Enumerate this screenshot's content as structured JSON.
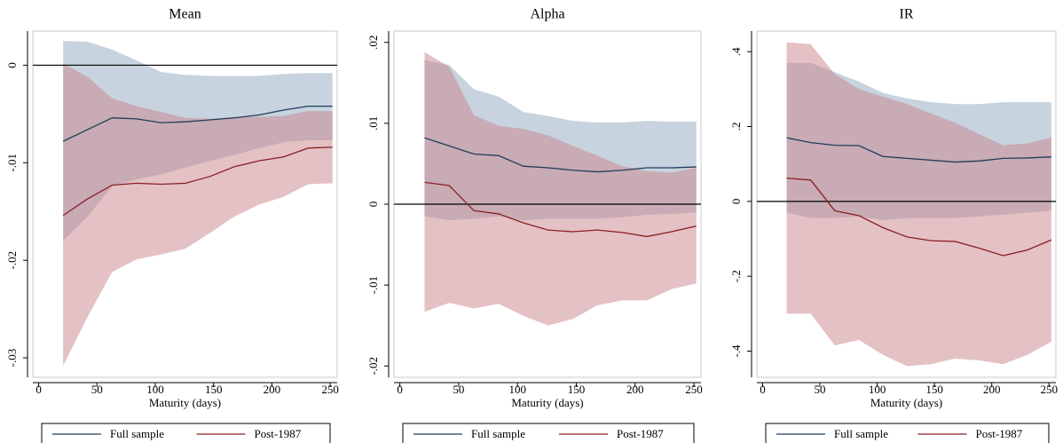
{
  "chart_data": [
    {
      "type": "line",
      "title": "Mean",
      "xlabel": "Maturity (days)",
      "x": [
        21,
        42,
        63,
        84,
        105,
        126,
        147,
        168,
        189,
        210,
        231,
        252
      ],
      "series": [
        {
          "name": "Full sample",
          "color": "#1f3d5c",
          "band_color": "#8fa8be",
          "values": [
            -0.0078,
            -0.0066,
            -0.0054,
            -0.0055,
            -0.0059,
            -0.0058,
            -0.0056,
            -0.0054,
            -0.0051,
            -0.0046,
            -0.0042,
            -0.0042
          ],
          "upper": [
            0.0025,
            0.0024,
            0.0016,
            0.0005,
            -0.0007,
            -0.001,
            -0.0011,
            -0.0011,
            -0.0011,
            -0.0009,
            -0.0008,
            -0.0008
          ],
          "lower": [
            -0.018,
            -0.0155,
            -0.0124,
            -0.0117,
            -0.0112,
            -0.0105,
            -0.0098,
            -0.0092,
            -0.0085,
            -0.0079,
            -0.0077,
            -0.0077
          ]
        },
        {
          "name": "Post-1987",
          "color": "#8b1e24",
          "band_color": "#c9838a",
          "values": [
            -0.0154,
            -0.0137,
            -0.0123,
            -0.0121,
            -0.0122,
            -0.0121,
            -0.0114,
            -0.0104,
            -0.0098,
            -0.0094,
            -0.0085,
            -0.0084
          ],
          "upper": [
            0.0002,
            -0.0012,
            -0.0034,
            -0.0042,
            -0.0048,
            -0.0054,
            -0.0055,
            -0.0053,
            -0.0053,
            -0.0052,
            -0.0047,
            -0.0047
          ],
          "lower": [
            -0.0308,
            -0.0258,
            -0.0212,
            -0.0199,
            -0.0194,
            -0.0188,
            -0.0172,
            -0.0155,
            -0.0143,
            -0.0135,
            -0.0122,
            -0.0121
          ]
        }
      ],
      "xlim": [
        -5,
        256
      ],
      "xticks": [
        0,
        50,
        100,
        150,
        200,
        250
      ],
      "ylim": [
        -0.032,
        0.0035
      ],
      "yticks": [
        {
          "value": -0.03,
          "label": "-.03"
        },
        {
          "value": -0.02,
          "label": "-.02"
        },
        {
          "value": -0.01,
          "label": "-.01"
        },
        0
      ],
      "reference_line": 0,
      "legend": "bottom"
    },
    {
      "type": "line",
      "title": "Alpha",
      "xlabel": "Maturity (days)",
      "x": [
        21,
        42,
        63,
        84,
        105,
        126,
        147,
        168,
        189,
        210,
        231,
        252
      ],
      "series": [
        {
          "name": "Full sample",
          "color": "#1f3d5c",
          "band_color": "#8fa8be",
          "values": [
            0.0082,
            0.0072,
            0.0062,
            0.006,
            0.0047,
            0.0045,
            0.0042,
            0.004,
            0.0042,
            0.0045,
            0.0045,
            0.0046
          ],
          "upper": [
            0.0178,
            0.0172,
            0.0142,
            0.0133,
            0.0114,
            0.0109,
            0.0103,
            0.0101,
            0.0101,
            0.0103,
            0.0102,
            0.0102
          ],
          "lower": [
            -0.0015,
            -0.002,
            -0.0018,
            -0.0015,
            -0.002,
            -0.0018,
            -0.0018,
            -0.0018,
            -0.0016,
            -0.0013,
            -0.0012,
            -0.001
          ]
        },
        {
          "name": "Post-1987",
          "color": "#8b1e24",
          "band_color": "#c9838a",
          "values": [
            0.0027,
            0.0023,
            -0.0008,
            -0.0012,
            -0.0023,
            -0.0032,
            -0.0034,
            -0.0032,
            -0.0035,
            -0.004,
            -0.0034,
            -0.0027
          ],
          "upper": [
            0.0188,
            0.017,
            0.011,
            0.0097,
            0.0093,
            0.0085,
            0.0072,
            0.006,
            0.0047,
            0.0041,
            0.0039,
            0.0045
          ],
          "lower": [
            -0.0133,
            -0.0122,
            -0.0129,
            -0.0123,
            -0.0138,
            -0.015,
            -0.0142,
            -0.0125,
            -0.0119,
            -0.0119,
            -0.0105,
            -0.0098
          ]
        }
      ],
      "xlim": [
        -5,
        256
      ],
      "xticks": [
        0,
        50,
        100,
        150,
        200,
        250
      ],
      "ylim": [
        -0.0214,
        0.0214
      ],
      "yticks": [
        {
          "value": -0.02,
          "label": "-.02"
        },
        {
          "value": -0.01,
          "label": "-.01"
        },
        0,
        {
          "value": 0.01,
          "label": ".01"
        },
        {
          "value": 0.02,
          "label": ".02"
        }
      ],
      "reference_line": 0,
      "legend": "bottom"
    },
    {
      "type": "line",
      "title": "IR",
      "xlabel": "Maturity (days)",
      "x": [
        21,
        42,
        63,
        84,
        105,
        126,
        147,
        168,
        189,
        210,
        231,
        252
      ],
      "series": [
        {
          "name": "Full sample",
          "color": "#1f3d5c",
          "band_color": "#8fa8be",
          "values": [
            0.17,
            0.157,
            0.15,
            0.149,
            0.12,
            0.115,
            0.11,
            0.105,
            0.108,
            0.115,
            0.116,
            0.119
          ],
          "upper": [
            0.37,
            0.37,
            0.345,
            0.32,
            0.29,
            0.275,
            0.265,
            0.26,
            0.26,
            0.265,
            0.265,
            0.265
          ],
          "lower": [
            -0.03,
            -0.045,
            -0.045,
            -0.04,
            -0.05,
            -0.045,
            -0.045,
            -0.045,
            -0.04,
            -0.035,
            -0.03,
            -0.025
          ]
        },
        {
          "name": "Post-1987",
          "color": "#8b1e24",
          "band_color": "#c9838a",
          "values": [
            0.062,
            0.057,
            -0.025,
            -0.038,
            -0.07,
            -0.095,
            -0.105,
            -0.107,
            -0.125,
            -0.145,
            -0.13,
            -0.103
          ],
          "upper": [
            0.425,
            0.42,
            0.34,
            0.3,
            0.28,
            0.26,
            0.235,
            0.21,
            0.18,
            0.15,
            0.155,
            0.17
          ],
          "lower": [
            -0.3,
            -0.3,
            -0.385,
            -0.37,
            -0.41,
            -0.44,
            -0.435,
            -0.42,
            -0.425,
            -0.435,
            -0.41,
            -0.375
          ]
        }
      ],
      "xlim": [
        -5,
        256
      ],
      "xticks": [
        0,
        50,
        100,
        150,
        200,
        250
      ],
      "ylim": [
        -0.47,
        0.455
      ],
      "yticks": [
        {
          "value": -0.4,
          "label": "-.4"
        },
        {
          "value": -0.2,
          "label": "-.2"
        },
        0,
        {
          "value": 0.2,
          "label": ".2"
        },
        {
          "value": 0.4,
          "label": ".4"
        }
      ],
      "reference_line": 0,
      "legend": "bottom"
    }
  ]
}
